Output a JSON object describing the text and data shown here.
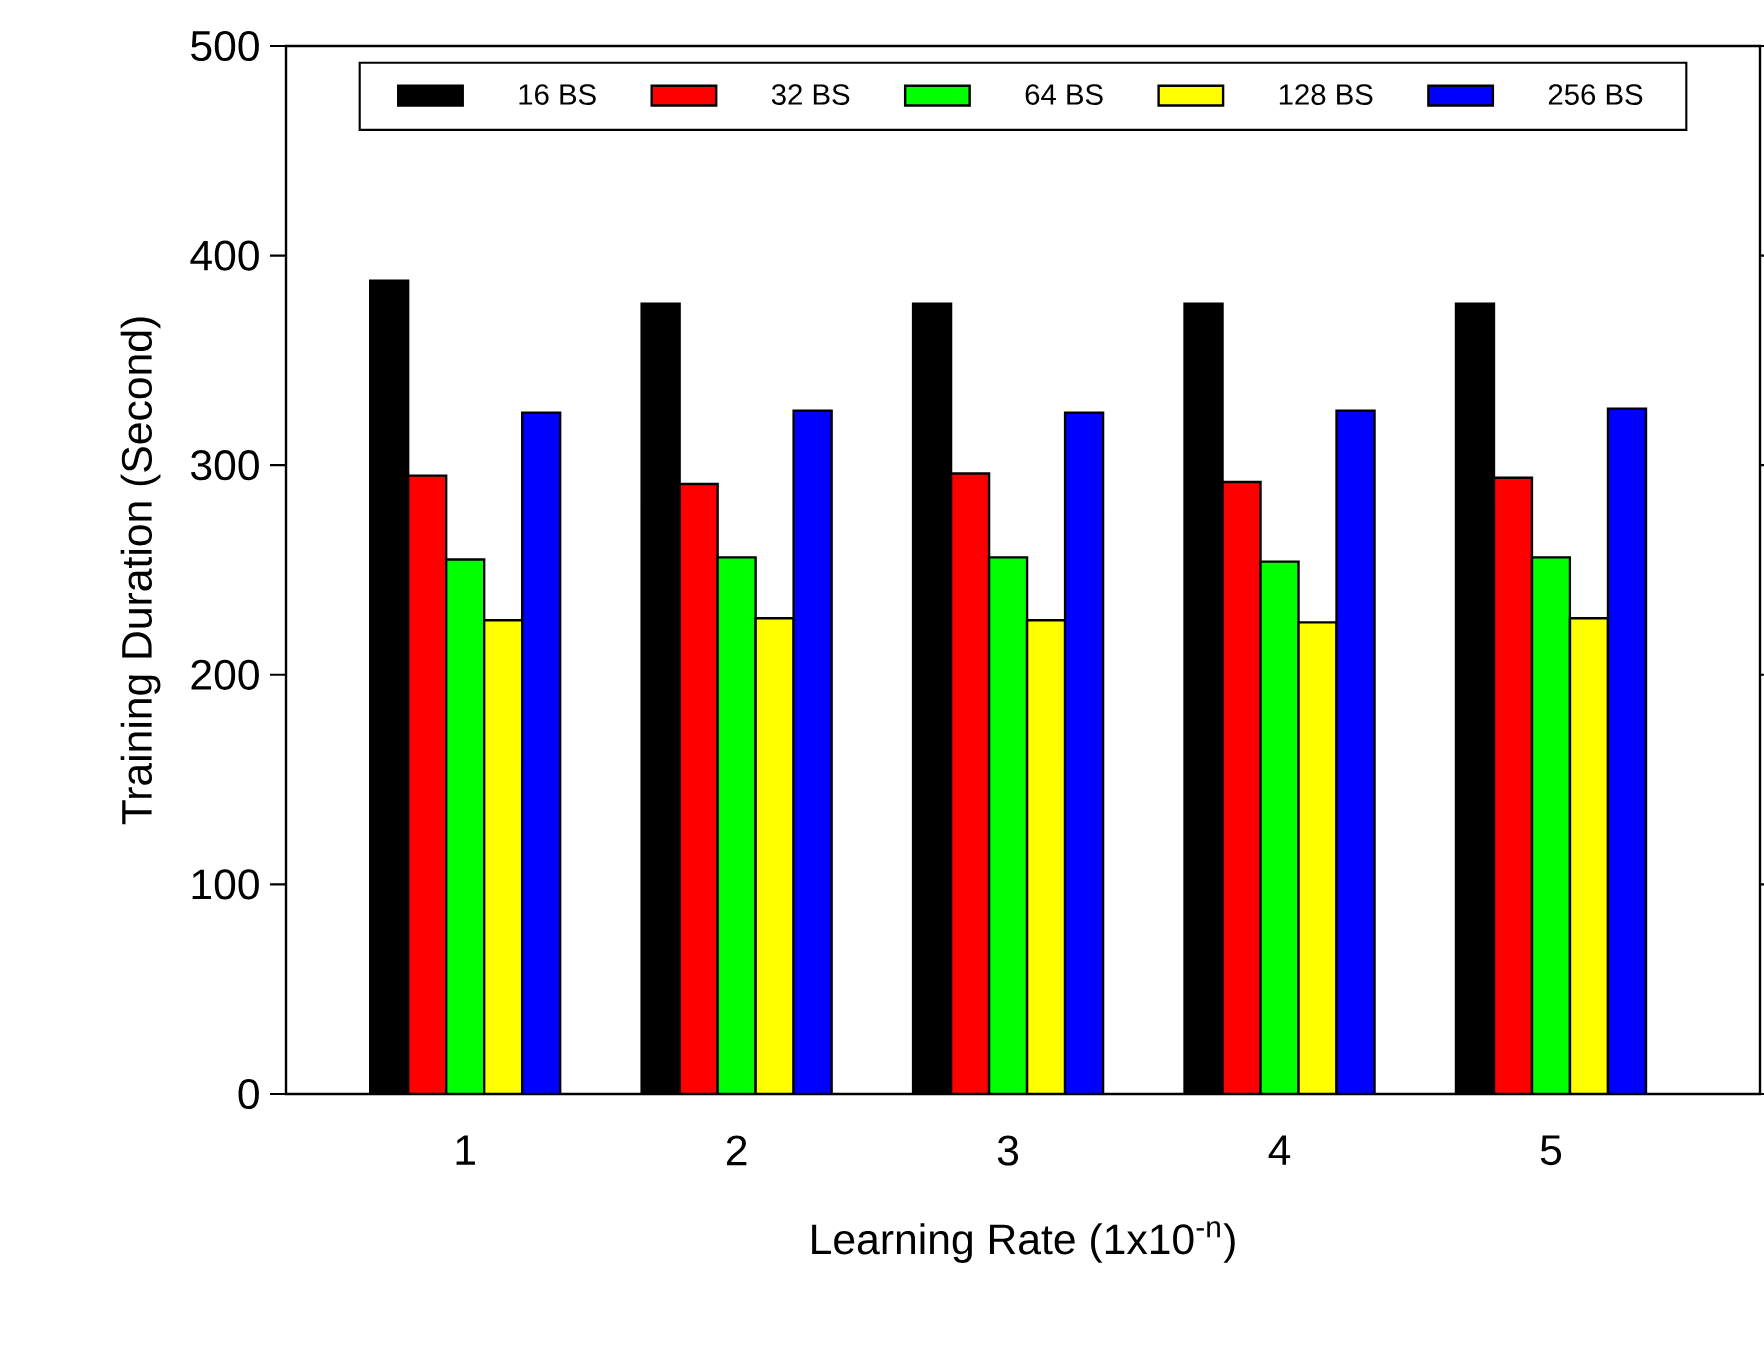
{
  "chart_data": {
    "type": "bar",
    "xlabel": "Learning Rate (1x10$^{-n}$)",
    "ylabel": "Training Duration (Second)",
    "categories": [
      "1",
      "2",
      "3",
      "4",
      "5"
    ],
    "series": [
      {
        "name": "16 BS",
        "color": "#000000",
        "values": [
          388,
          377,
          377,
          377,
          377
        ]
      },
      {
        "name": "32 BS",
        "color": "#ff0000",
        "values": [
          295,
          291,
          296,
          292,
          294
        ]
      },
      {
        "name": "64 BS",
        "color": "#00ff00",
        "values": [
          255,
          256,
          256,
          254,
          256
        ]
      },
      {
        "name": "128 BS",
        "color": "#ffff00",
        "values": [
          226,
          227,
          226,
          225,
          227
        ]
      },
      {
        "name": "256 BS",
        "color": "#0000ff",
        "values": [
          325,
          326,
          325,
          326,
          327
        ]
      }
    ],
    "ylim": [
      0,
      500
    ],
    "yticks": [
      0,
      100,
      200,
      300,
      400,
      500
    ],
    "grid": false,
    "legend": "top"
  }
}
